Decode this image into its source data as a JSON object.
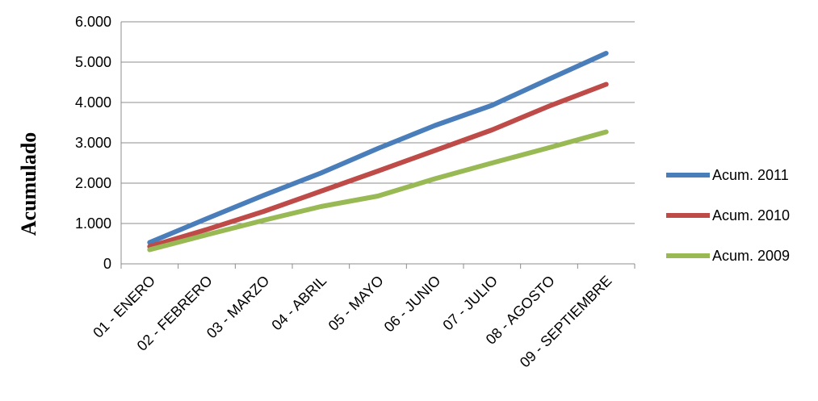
{
  "chart_data": {
    "type": "line",
    "title": "",
    "xlabel": "",
    "ylabel": "Acumulado",
    "categories": [
      "01 - ENERO",
      "02 - FEBRERO",
      "03 - MARZO",
      "04 - ABRIL",
      "05 - MAYO",
      "06 - JUNIO",
      "07 - JULIO",
      "08 - AGOSTO",
      "09 - SEPTIEMBRE"
    ],
    "ylim": [
      0,
      6000
    ],
    "yticks": [
      0,
      1000,
      2000,
      3000,
      4000,
      5000,
      6000
    ],
    "ytick_labels": [
      "0",
      "1.000",
      "2.000",
      "3.000",
      "4.000",
      "5.000",
      "6.000"
    ],
    "grid": true,
    "legend_position": "right",
    "series": [
      {
        "name": "Acum. 2011",
        "color": "#4a7ebb",
        "values": [
          530,
          1120,
          1700,
          2250,
          2860,
          3430,
          3930,
          4580,
          5220
        ]
      },
      {
        "name": "Acum. 2010",
        "color": "#be4b48",
        "values": [
          430,
          850,
          1300,
          1800,
          2300,
          2810,
          3320,
          3910,
          4450
        ]
      },
      {
        "name": "Acum. 2009",
        "color": "#98b954",
        "values": [
          350,
          720,
          1080,
          1420,
          1680,
          2110,
          2500,
          2880,
          3270
        ]
      }
    ]
  }
}
